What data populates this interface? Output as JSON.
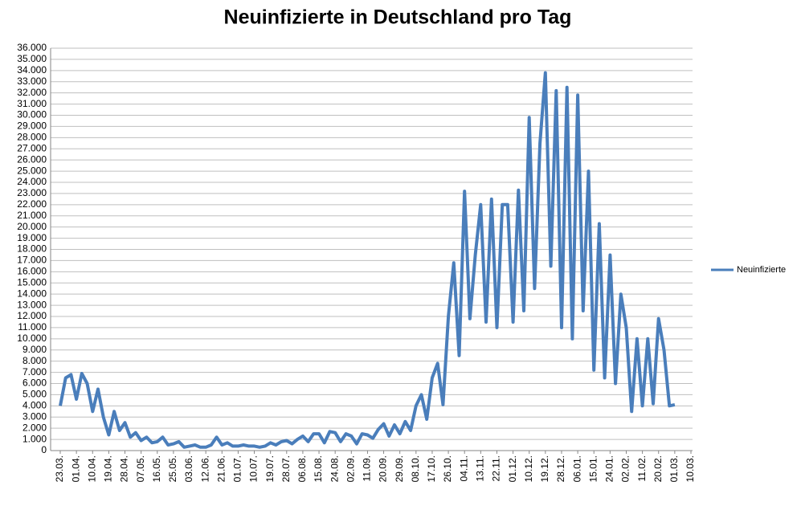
{
  "chart_data": {
    "type": "line",
    "title": "Neuinfizierte in Deutschland pro Tag",
    "categories": [
      "23.03.",
      null,
      null,
      "01.04.",
      null,
      null,
      "10.04.",
      null,
      null,
      "19.04.",
      null,
      null,
      "28.04.",
      null,
      null,
      "07.05.",
      null,
      null,
      "16.05.",
      null,
      null,
      "25.05.",
      null,
      null,
      "03.06.",
      null,
      null,
      "12.06.",
      null,
      null,
      "21.06.",
      null,
      null,
      "01.07.",
      null,
      null,
      "10.07.",
      null,
      null,
      "19.07.",
      null,
      null,
      "28.07.",
      null,
      null,
      "06.08.",
      null,
      null,
      "15.08.",
      null,
      null,
      "24.08.",
      null,
      null,
      "02.09.",
      null,
      null,
      "11.09.",
      null,
      null,
      "20.09.",
      null,
      null,
      "29.09.",
      null,
      null,
      "08.10.",
      null,
      null,
      "17.10.",
      null,
      null,
      "26.10.",
      null,
      null,
      "04.11.",
      null,
      null,
      "13.11.",
      null,
      null,
      "22.11.",
      null,
      null,
      "01.12.",
      null,
      null,
      "10.12.",
      null,
      null,
      "19.12.",
      null,
      null,
      "28.12.",
      null,
      null,
      "06.01.",
      null,
      null,
      "15.01.",
      null,
      null,
      "24.01.",
      null,
      null,
      "02.02.",
      null,
      null,
      "11.02.",
      null,
      null,
      "20.02.",
      null,
      null,
      "01.03.",
      null,
      null,
      "10.03."
    ],
    "series": [
      {
        "name": "Neuinfizierte",
        "color": "#4a7ebb",
        "values": [
          4000,
          6500,
          6800,
          4600,
          6900,
          6000,
          3500,
          5500,
          3000,
          1400,
          3500,
          1800,
          2500,
          1200,
          1600,
          900,
          1200,
          700,
          800,
          1200,
          500,
          600,
          800,
          300,
          400,
          500,
          300,
          300,
          500,
          1200,
          500,
          700,
          400,
          400,
          500,
          400,
          400,
          300,
          400,
          700,
          500,
          800,
          900,
          600,
          1000,
          1300,
          800,
          1500,
          1500,
          700,
          1700,
          1600,
          800,
          1500,
          1300,
          600,
          1500,
          1400,
          1100,
          1900,
          2400,
          1300,
          2300,
          1500,
          2600,
          1800,
          4000,
          5000,
          2800,
          6500,
          7800,
          4100,
          12000,
          16800,
          8500,
          23200,
          11800,
          17500,
          22000,
          11500,
          22500,
          11000,
          22000,
          22000,
          11500,
          23300,
          12500,
          29800,
          14500,
          27500,
          33800,
          16500,
          32200,
          11000,
          32500,
          10000,
          31800,
          12500,
          25000,
          7200,
          20300,
          6500,
          17500,
          6000,
          14000,
          11000,
          3500,
          10000,
          4000,
          10000,
          4200,
          11800,
          9000,
          4000,
          4100,
          null,
          null,
          null
        ]
      }
    ],
    "ylim": [
      0,
      36000
    ],
    "yticks": [
      0,
      {
        "value": 1000,
        "label": "1.000"
      },
      {
        "value": 2000,
        "label": "2.000"
      },
      {
        "value": 3000,
        "label": "3.000"
      },
      {
        "value": 4000,
        "label": "4.000"
      },
      {
        "value": 5000,
        "label": "5.000"
      },
      {
        "value": 6000,
        "label": "6.000"
      },
      {
        "value": 7000,
        "label": "7.000"
      },
      {
        "value": 8000,
        "label": "8.000"
      },
      {
        "value": 9000,
        "label": "9.000"
      },
      {
        "value": 10000,
        "label": "10.000"
      },
      {
        "value": 11000,
        "label": "11.000"
      },
      {
        "value": 12000,
        "label": "12.000"
      },
      {
        "value": 13000,
        "label": "13.000"
      },
      {
        "value": 14000,
        "label": "14.000"
      },
      {
        "value": 15000,
        "label": "15.000"
      },
      {
        "value": 16000,
        "label": "16.000"
      },
      {
        "value": 17000,
        "label": "17.000"
      },
      {
        "value": 18000,
        "label": "18.000"
      },
      {
        "value": 19000,
        "label": "19.000"
      },
      {
        "value": 20000,
        "label": "20.000"
      },
      {
        "value": 21000,
        "label": "21.000"
      },
      {
        "value": 22000,
        "label": "22.000"
      },
      {
        "value": 23000,
        "label": "23.000"
      },
      {
        "value": 24000,
        "label": "24.000"
      },
      {
        "value": 25000,
        "label": "25.000"
      },
      {
        "value": 26000,
        "label": "26.000"
      },
      {
        "value": 27000,
        "label": "27.000"
      },
      {
        "value": 28000,
        "label": "28.000"
      },
      {
        "value": 29000,
        "label": "29.000"
      },
      {
        "value": 30000,
        "label": "30.000"
      },
      {
        "value": 31000,
        "label": "31.000"
      },
      {
        "value": 32000,
        "label": "32.000"
      },
      {
        "value": 33000,
        "label": "33.000"
      },
      {
        "value": 34000,
        "label": "34.000"
      },
      {
        "value": 35000,
        "label": "35.000"
      },
      {
        "value": 36000,
        "label": "36.000"
      }
    ],
    "grid": true,
    "legend": "right"
  }
}
